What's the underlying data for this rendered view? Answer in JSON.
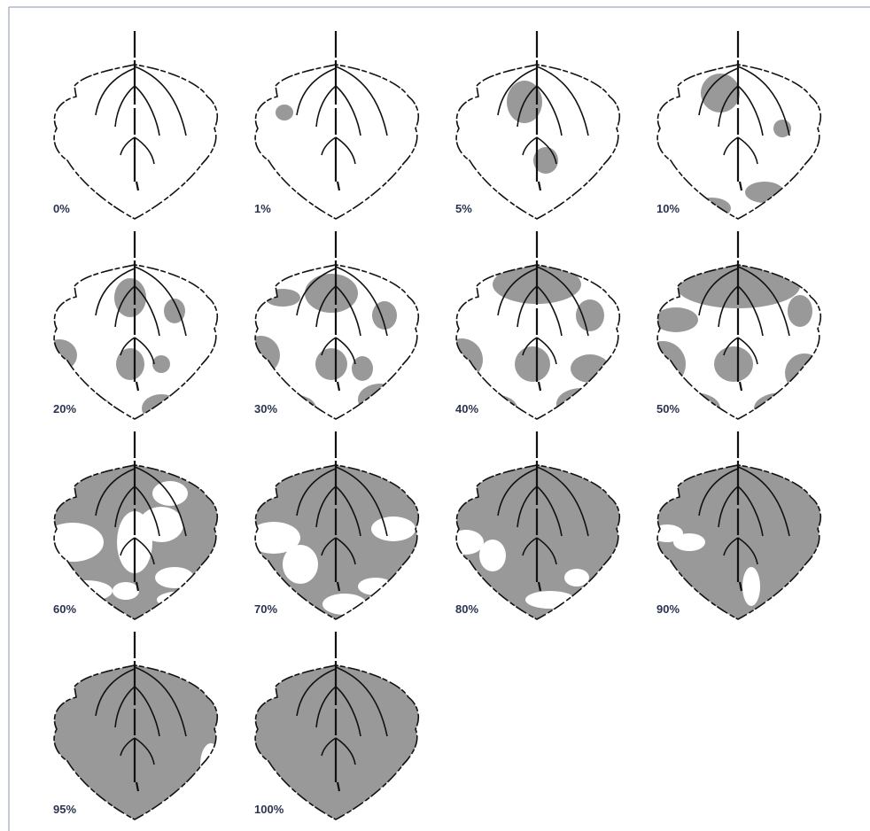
{
  "leaves": [
    {
      "label": "0%"
    },
    {
      "label": "1%"
    },
    {
      "label": "5%"
    },
    {
      "label": "10%"
    },
    {
      "label": "20%"
    },
    {
      "label": "30%"
    },
    {
      "label": "40%"
    },
    {
      "label": "50%"
    },
    {
      "label": "60%"
    },
    {
      "label": "70%"
    },
    {
      "label": "80%"
    },
    {
      "label": "90%"
    },
    {
      "label": "95%"
    },
    {
      "label": "100%"
    }
  ]
}
